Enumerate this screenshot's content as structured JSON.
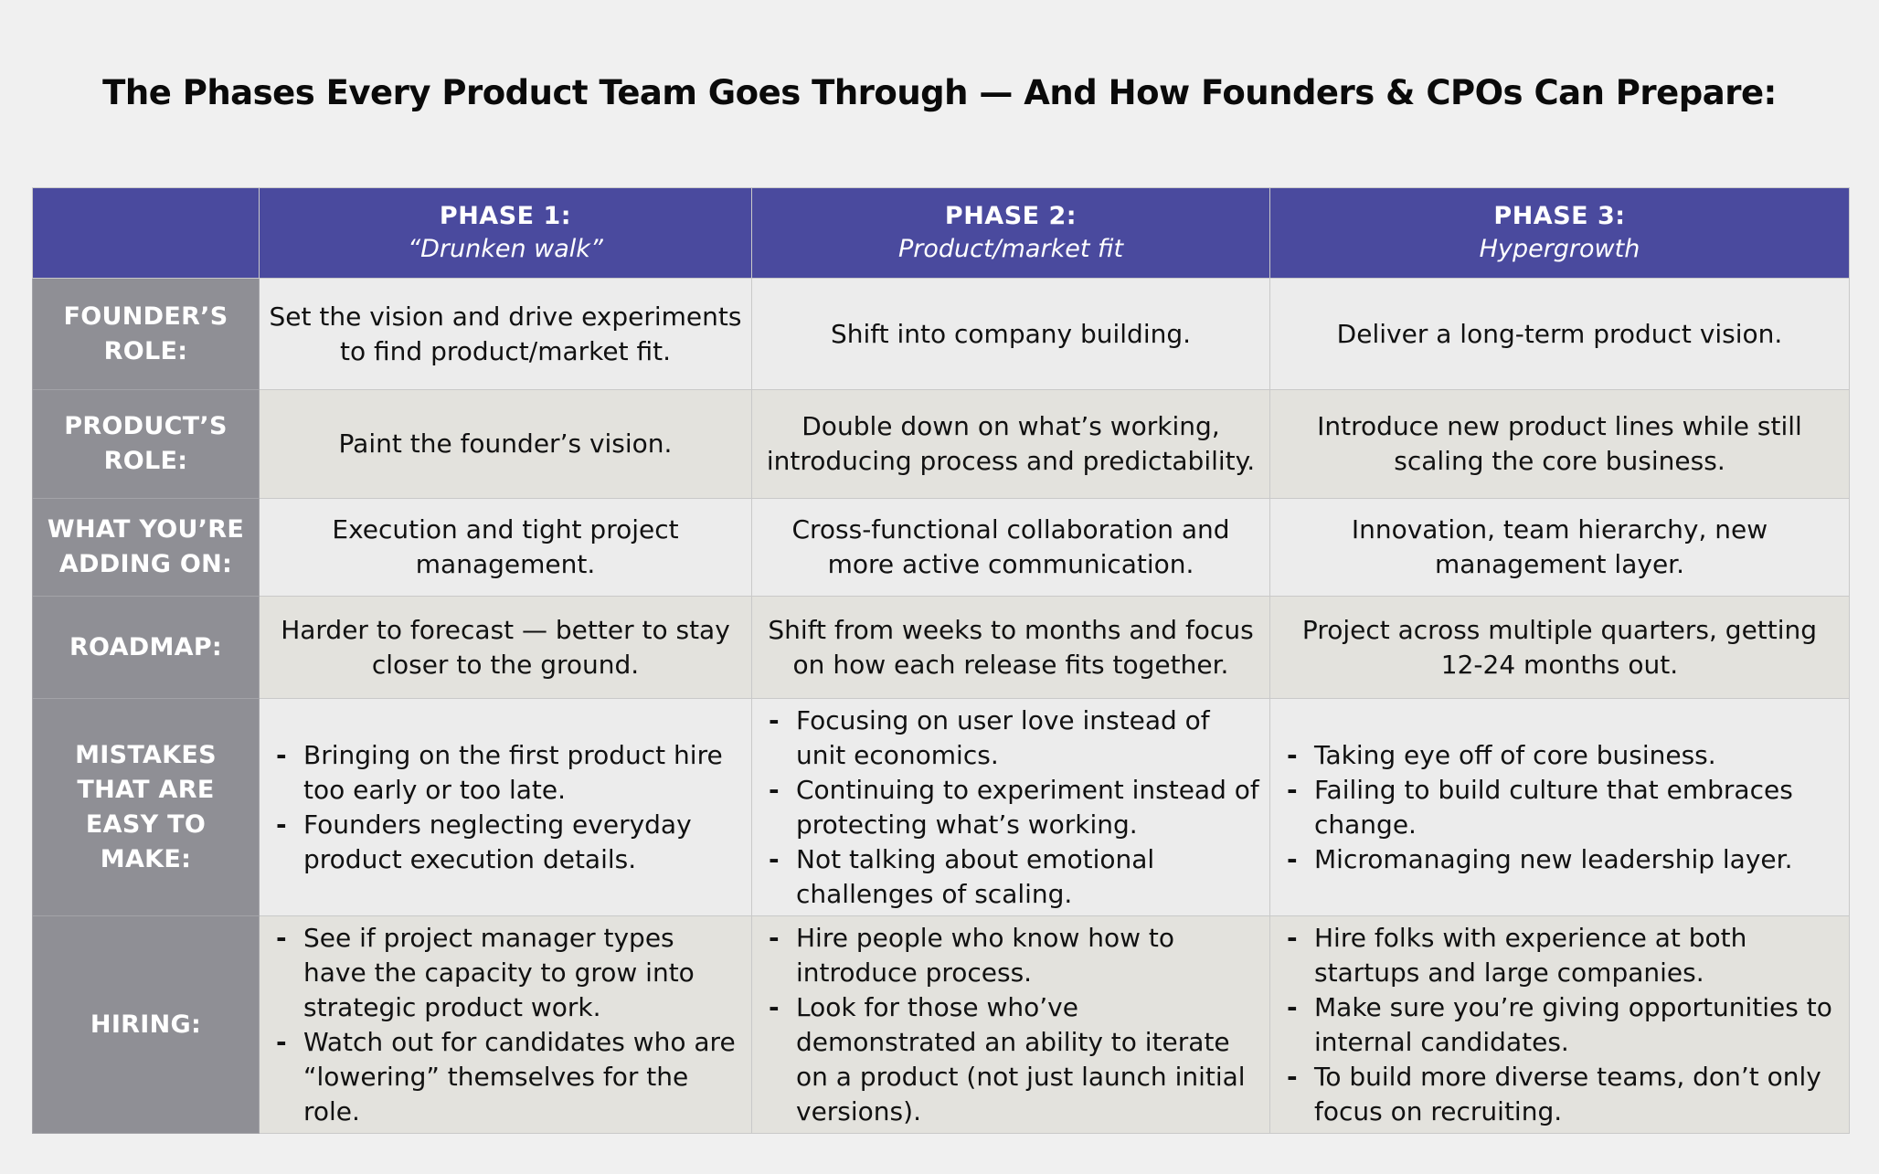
{
  "title": "The Phases Every Product Team Goes Through — And How Founders & CPOs Can Prepare:",
  "phases": [
    {
      "name": "PHASE 1:",
      "subtitle": "“Drunken walk”"
    },
    {
      "name": "PHASE 2:",
      "subtitle": "Product/market fit"
    },
    {
      "name": "PHASE 3:",
      "subtitle": "Hypergrowth"
    }
  ],
  "rows": {
    "founders_role": {
      "label": "FOUNDER’S ROLE:",
      "p1": "Set the vision and drive experiments to find product/market fit.",
      "p2": "Shift into company building.",
      "p3": "Deliver a long-term product vision."
    },
    "products_role": {
      "label": "PRODUCT’S ROLE:",
      "p1": "Paint the founder’s vision.",
      "p2": "Double down on what’s working, introducing process and predictability.",
      "p3": "Introduce new product lines while still scaling the core business."
    },
    "adding_on": {
      "label": "WHAT YOU’RE ADDING ON:",
      "p1": "Execution and tight project management.",
      "p2": "Cross-functional collaboration and more active communication.",
      "p3": "Innovation, team hierarchy, new management layer."
    },
    "roadmap": {
      "label": "ROADMAP:",
      "p1": "Harder to forecast — better to stay closer to the ground.",
      "p2": "Shift from weeks to months and focus on how each release fits together.",
      "p3": "Project across multiple quarters, getting 12-24 months out."
    },
    "mistakes": {
      "label": "MISTAKES THAT ARE EASY TO MAKE:",
      "p1": [
        "Bringing on the first product hire too early or too late.",
        "Founders neglecting everyday product execution details."
      ],
      "p2": [
        "Focusing on user love instead of unit economics.",
        "Continuing to experiment instead of protecting what’s working.",
        "Not talking about emotional challenges of scaling."
      ],
      "p3": [
        "Taking eye off of core business.",
        "Failing to build culture that embraces change.",
        "Micromanaging new leadership layer."
      ]
    },
    "hiring": {
      "label": "HIRING:",
      "p1": [
        "See if project manager types have the capacity to grow into strategic product work.",
        "Watch out for candidates who are “lowering” themselves for the role."
      ],
      "p2": [
        "Hire people who know how to introduce process.",
        "Look for those who’ve demonstrated an ability to iterate on a product (not just launch initial versions)."
      ],
      "p3": [
        "Hire folks with experience at both startups and large companies.",
        "Make sure you’re giving opportunities to internal candidates.",
        "To build more diverse teams, don’t only focus on recruiting."
      ]
    }
  }
}
